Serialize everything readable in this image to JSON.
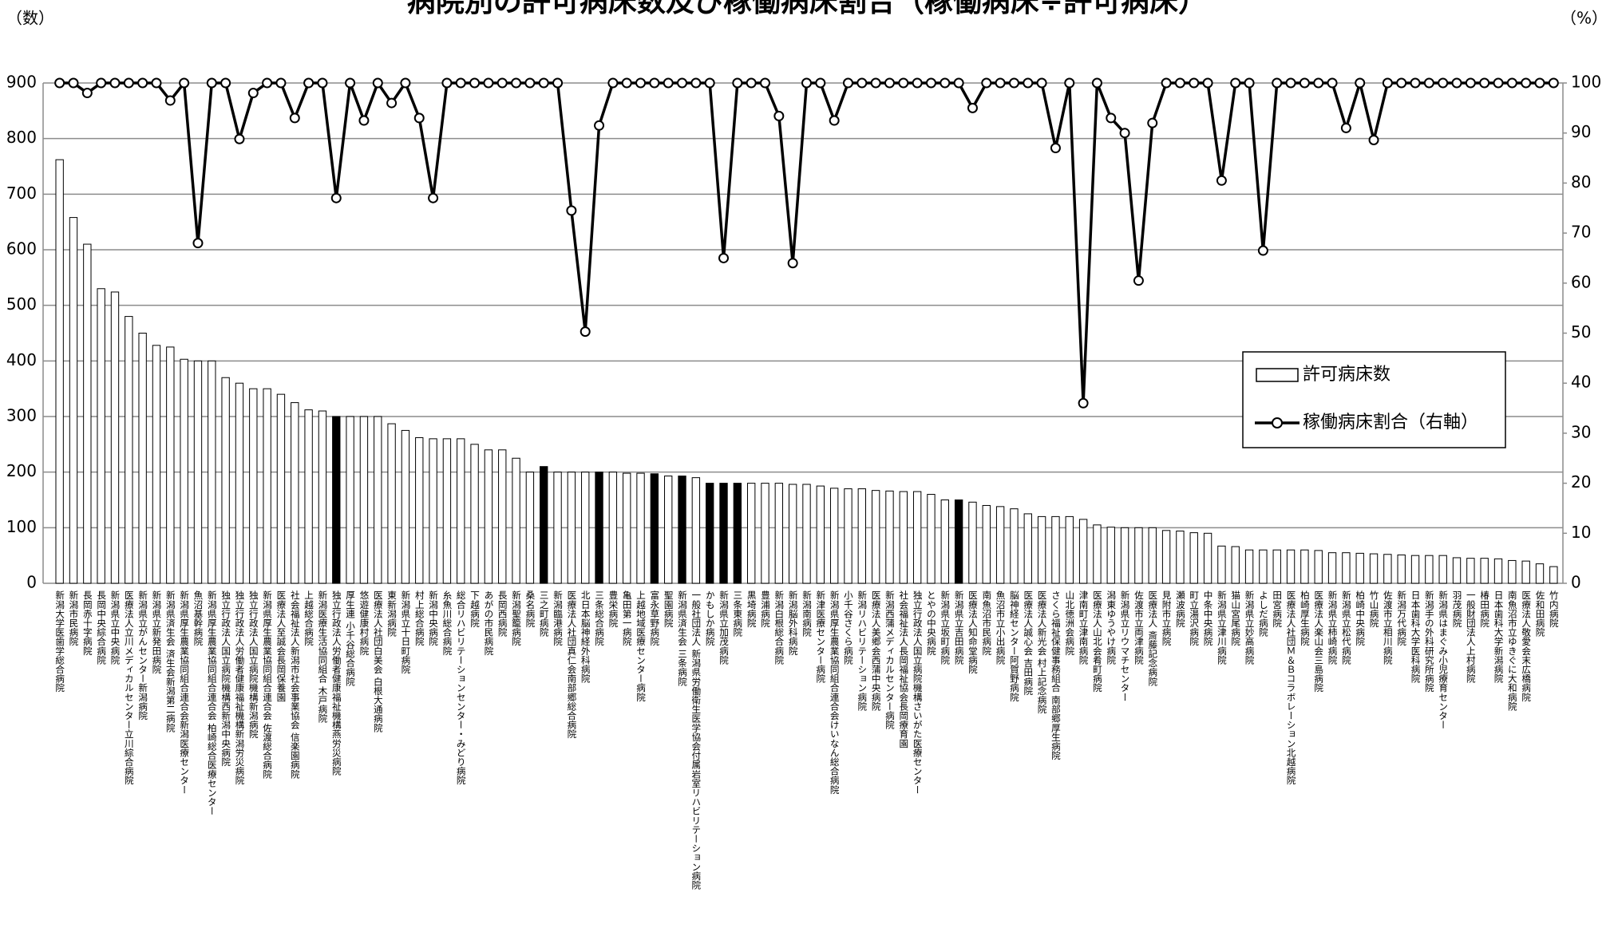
{
  "chart_data": {
    "type": "bar-line",
    "title": "病院別の許可病床数及び稼働病床割合（稼働病床÷許可病床）",
    "y_label": "（数）",
    "y2_label": "（%）",
    "categories": [
      "新潟大学医歯学総合病院",
      "新潟市民病院",
      "長岡赤十字病院",
      "長岡中央綜合病院",
      "新潟県立中央病院",
      "医療法人立川メディカルセンター立川綜合病院",
      "新潟県立がんセンター新潟病院",
      "新潟県立新発田病院",
      "新潟県済生会 済生会新潟第二病院",
      "新潟県厚生農業協同組合連合会新潟医療センター",
      "魚沼基幹病院",
      "新潟県厚生農業協同組合連合会 柏崎総合医療センター",
      "独立行政法人国立病院機構西新潟中央病院",
      "独立行政法人労働者健康福祉機構新潟労災病院",
      "独立行政法人国立病院機構新潟病院",
      "新潟県厚生農業協同組合連合会 佐渡総合病院",
      "医療法人至誠会長岡保養園",
      "社会福祉法人新潟市社会事業協会 信楽園病院",
      "上越総合病院",
      "新潟医療生活協同組合 木戸病院",
      "独立行政法人労働者健康福祉機構燕労災病院",
      "厚生連 小千谷総合病院",
      "悠遊健康村病院",
      "医療法人社団白美会 白根大通病院",
      "東新潟病院",
      "新潟県立十日町病院",
      "村上総合病院",
      "新潟中央病院",
      "糸魚川総合病院",
      "総合リハビリテーションセンター・みどり病院",
      "下越病院",
      "あがの市民病院",
      "長岡西病院",
      "新潟聖籠病院",
      "桑名病院",
      "三之町病院",
      "新潟臨港病院",
      "医療法人社団真仁会南部郷総合病院",
      "北日本脳神経外科病院",
      "三条総合病院",
      "豊栄病院",
      "亀田第一病院",
      "上越地域医療センター病院",
      "富永草野病院",
      "聖園病院",
      "新潟県済生会 三条病院",
      "一般社団法人 新潟県労働衛生医学協会付属岩室リハビリテーション病院",
      "かもしか病院",
      "新潟県立加茂病院",
      "三条東病院",
      "黒埼病院",
      "豊浦病院",
      "新潟白根総合病院",
      "新潟脳外科病院",
      "新潟南病院",
      "新津医療センター病院",
      "新潟県厚生農業協同組合連合会けいなん総合病院",
      "小千谷さくら病院",
      "新潟リハビリテーション病院",
      "医療法人美郷会西蒲中央病院",
      "新潟西蒲メディカルセンター病院",
      "社会福祉法人長岡福祉協会長岡療育園",
      "独立行政法人国立病院機構さいがた医療センター",
      "とやの中央病院",
      "新潟県立坂町病院",
      "新潟県立吉田病院",
      "医療法人知命堂病院",
      "南魚沼市民病院",
      "魚沼市立小出病院",
      "脳神経センター阿賀野病院",
      "医療法人誠心会 吉田病院",
      "医療法人新光会 村上記念病院",
      "さくら福祉保健事務組合 南部郷厚生病院",
      "山北徳洲会病院",
      "津南町立津南病院",
      "医療法人山北会肴町病院",
      "潟東ゆうやけ病院",
      "新潟県立リウマチセンター",
      "佐渡市立両津病院",
      "医療法人 斎藤記念病院",
      "見附市立病院",
      "瀬波病院",
      "町立湯沢病院",
      "中条中央病院",
      "新潟県立津川病院",
      "猫山宮尾病院",
      "新潟県立妙高病院",
      "よしだ病院",
      "田宮病院",
      "医療法人社団Ｍ＆Ｂコラボレーション北越病院",
      "柏崎厚生病院",
      "医療法人楽山会三島病院",
      "新潟県立柿崎病院",
      "新潟県立松代病院",
      "柏崎中央病院",
      "竹山病院",
      "佐渡市立相川病院",
      "新潟万代病院",
      "日本歯科大学医科病院",
      "新潟手の外科研究所病院",
      "新潟県はまぐみ小児療育センター",
      "羽茂病院",
      "一般財団法人上村病院",
      "椿田病院",
      "日本歯科大学新潟病院",
      "南魚沼市立ゆきぐに大和病院",
      "医療法人敬愛会末広橋病院",
      "佐和田病院",
      "竹内病院"
    ],
    "series": [
      {
        "name": "許可病床数",
        "color": "#ffffff",
        "colors": [
          "#fff",
          "#fff",
          "#fff",
          "#fff",
          "#fff",
          "#fff",
          "#fff",
          "#fff",
          "#fff",
          "#fff",
          "#fff",
          "#fff",
          "#fff",
          "#fff",
          "#fff",
          "#fff",
          "#fff",
          "#fff",
          "#fff",
          "#fff",
          "#000",
          "#fff",
          "#fff",
          "#fff",
          "#fff",
          "#fff",
          "#fff",
          "#fff",
          "#fff",
          "#fff",
          "#fff",
          "#fff",
          "#fff",
          "#fff",
          "#fff",
          "#000",
          "#fff",
          "#fff",
          "#fff",
          "#000",
          "#fff",
          "#fff",
          "#fff",
          "#000",
          "#fff",
          "#000",
          "#fff",
          "#000",
          "#000",
          "#000",
          "#fff",
          "#fff",
          "#fff",
          "#fff",
          "#fff",
          "#fff",
          "#fff",
          "#fff",
          "#fff",
          "#fff",
          "#fff",
          "#fff",
          "#fff",
          "#fff",
          "#fff",
          "#000",
          "#fff",
          "#fff",
          "#fff",
          "#fff",
          "#fff",
          "#fff",
          "#fff",
          "#fff",
          "#fff",
          "#fff",
          "#fff",
          "#fff",
          "#fff",
          "#fff",
          "#fff",
          "#fff",
          "#fff",
          "#fff",
          "#fff",
          "#fff",
          "#fff",
          "#fff",
          "#fff",
          "#fff",
          "#fff",
          "#fff",
          "#fff",
          "#fff",
          "#fff",
          "#fff",
          "#fff",
          "#fff",
          "#fff",
          "#fff",
          "#fff",
          "#fff",
          "#fff",
          "#fff",
          "#fff",
          "#fff",
          "#fff",
          "#fff",
          "#fff"
        ],
        "values": [
          762,
          658,
          610,
          530,
          524,
          480,
          450,
          428,
          425,
          403,
          400,
          400,
          370,
          360,
          350,
          350,
          340,
          325,
          312,
          310,
          300,
          300,
          300,
          300,
          287,
          275,
          262,
          260,
          260,
          260,
          250,
          240,
          240,
          225,
          200,
          210,
          200,
          200,
          200,
          200,
          200,
          198,
          198,
          197,
          193,
          193,
          190,
          180,
          180,
          180,
          180,
          180,
          180,
          178,
          178,
          175,
          171,
          170,
          170,
          167,
          166,
          165,
          165,
          160,
          150,
          150,
          146,
          140,
          138,
          134,
          125,
          120,
          120,
          120,
          115,
          105,
          101,
          100,
          100,
          100,
          95,
          94,
          91,
          90,
          67,
          66,
          60,
          60,
          60,
          60,
          60,
          59,
          55,
          55,
          54,
          53,
          52,
          51,
          50,
          50,
          50,
          46,
          45,
          45,
          44,
          41,
          40,
          35,
          30
        ]
      },
      {
        "name": "稼働病床割合（右軸）",
        "color": "#000000",
        "axis": "y2",
        "values": [
          100,
          100,
          98,
          100,
          100,
          100,
          100,
          100,
          96.5,
          100,
          68,
          100,
          100,
          88.8,
          98,
          100,
          100,
          93,
          100,
          100,
          77,
          100,
          92.5,
          100,
          96,
          100,
          93,
          77,
          100,
          100,
          100,
          100,
          100,
          100,
          100,
          100,
          100,
          74.5,
          50.3,
          91.5,
          100,
          100,
          100,
          100,
          100,
          100,
          100,
          100,
          65,
          100,
          100,
          100,
          93.4,
          64,
          100,
          100,
          92.5,
          100,
          100,
          100,
          100,
          100,
          100,
          100,
          100,
          100,
          95,
          100,
          100,
          100,
          100,
          100,
          87,
          100,
          36,
          100,
          93,
          90,
          60.5,
          92,
          100,
          100,
          100,
          100,
          80.5,
          100,
          100,
          66.5,
          100,
          100,
          100,
          100,
          100,
          91,
          100,
          88.6,
          100,
          100,
          100,
          100,
          100,
          100,
          100,
          100,
          100,
          100,
          100,
          100,
          100
        ]
      }
    ],
    "ylim": [
      0,
      900
    ],
    "yticks": [
      0,
      100,
      200,
      300,
      400,
      500,
      600,
      700,
      800,
      900
    ],
    "y2lim": [
      0,
      100
    ],
    "y2ticks": [
      0,
      10,
      20,
      30,
      40,
      50,
      60,
      70,
      80,
      90,
      100
    ],
    "grid": true
  }
}
